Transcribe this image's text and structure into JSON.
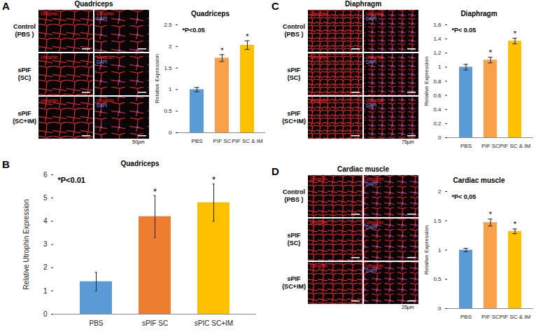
{
  "chart_data": [
    {
      "type": "bar",
      "title": "Quadriceps",
      "y_label": "Relative Expression",
      "categories": [
        "PBS",
        "PIF SC",
        "PIF SC & IM"
      ],
      "values": [
        1.0,
        1.73,
        2.03
      ],
      "errors": [
        0.05,
        0.08,
        0.1
      ],
      "colors": [
        "#5b9bd5",
        "#f9a04b",
        "#ffc000"
      ],
      "ylim": [
        0,
        2.5
      ],
      "yticks": [
        0,
        0.5,
        1,
        1.5,
        2,
        2.5
      ],
      "annotations": [
        "*P<0.05"
      ],
      "bar_marks": [
        null,
        "*",
        "*"
      ],
      "grid": false
    },
    {
      "type": "bar",
      "title": "Quadriceps",
      "y_label": "Relative Utrophin Expression",
      "categories": [
        "PBS",
        "sPIF SC",
        "sPIC SC+IM"
      ],
      "values": [
        1.4,
        4.2,
        4.8
      ],
      "errors": [
        0.4,
        0.9,
        0.8
      ],
      "colors": [
        "#5b9bd5",
        "#ed7d31",
        "#ffc000"
      ],
      "ylim": [
        0,
        6
      ],
      "yticks": [
        0,
        1,
        2,
        3,
        4,
        5,
        6
      ],
      "annotations": [
        "*P<0.01"
      ],
      "bar_marks": [
        null,
        "*",
        "*"
      ],
      "grid": false
    },
    {
      "type": "bar",
      "title": "Diaphragm",
      "y_label": "Relative Expression",
      "categories": [
        "PBS",
        "PIF SC",
        "PIF SC & IM"
      ],
      "values": [
        1.0,
        1.1,
        1.37
      ],
      "errors": [
        0.04,
        0.04,
        0.04
      ],
      "colors": [
        "#5b9bd5",
        "#f9a04b",
        "#ffc000"
      ],
      "ylim": [
        0,
        1.6
      ],
      "yticks": [
        0,
        0.2,
        0.4,
        0.6,
        0.8,
        1,
        1.2,
        1.4,
        1.6
      ],
      "annotations": [
        "*P< 0.05"
      ],
      "bar_marks": [
        null,
        "*",
        "*"
      ],
      "grid": false
    },
    {
      "type": "bar",
      "title": "Cardiac muscle",
      "y_label": "Relative Expression",
      "categories": [
        "PBS",
        "PIF SC",
        "PIF SC & IM"
      ],
      "values": [
        1.0,
        1.47,
        1.32
      ],
      "errors": [
        0.03,
        0.06,
        0.04
      ],
      "colors": [
        "#5b9bd5",
        "#f9a04b",
        "#ffc000"
      ],
      "ylim": [
        0,
        2
      ],
      "yticks": [
        0,
        0.5,
        1,
        1.5,
        2
      ],
      "annotations": [
        "*P< 0,05"
      ],
      "bar_marks": [
        null,
        "*",
        "*"
      ],
      "grid": false
    }
  ],
  "figure": {
    "panels": [
      {
        "letter": "A",
        "title": "Quadriceps",
        "row_labels": [
          [
            "Control",
            "(PBS )"
          ],
          [
            "sPIF",
            "(SC)"
          ],
          [
            "sPIF",
            "(SC+IM)"
          ]
        ],
        "columns": [
          [
            {
              "text": "Utrophin",
              "color": "#ff3030"
            }
          ],
          [
            {
              "text": "Utrophin",
              "color": "#ff3030"
            },
            {
              "text": "DAPI",
              "color": "#7f9bff"
            }
          ]
        ],
        "scale_bar": "50µm"
      },
      {
        "letter": "B"
      },
      {
        "letter": "C",
        "title": "Diaphragm",
        "row_labels": [
          [
            "Control",
            "(PBS )"
          ],
          [
            "sPIF",
            "(SC)"
          ],
          [
            "sPIF",
            "(SC+IM)"
          ]
        ],
        "columns": [
          [
            {
              "text": "Utrophin",
              "color": "#ff3030"
            }
          ],
          [
            {
              "text": "Utrophin",
              "color": "#ff3030"
            },
            {
              "text": "DAPI",
              "color": "#7f9bff"
            }
          ]
        ],
        "scale_bar": "75µm"
      },
      {
        "letter": "D",
        "title": "Cardiac muscle",
        "row_labels": [
          [
            "Control",
            "(PBS )"
          ],
          [
            "sPIF",
            "(SC)"
          ],
          [
            "sPIF",
            "(SC+IM)"
          ]
        ],
        "columns": [
          [
            {
              "text": "Utrophin",
              "color": "#ff3030"
            }
          ],
          [
            {
              "text": "Utrophin",
              "color": "#ff3030"
            },
            {
              "text": "DAPI",
              "color": "#7f9bff"
            }
          ]
        ],
        "scale_bar": "25µm"
      }
    ]
  }
}
